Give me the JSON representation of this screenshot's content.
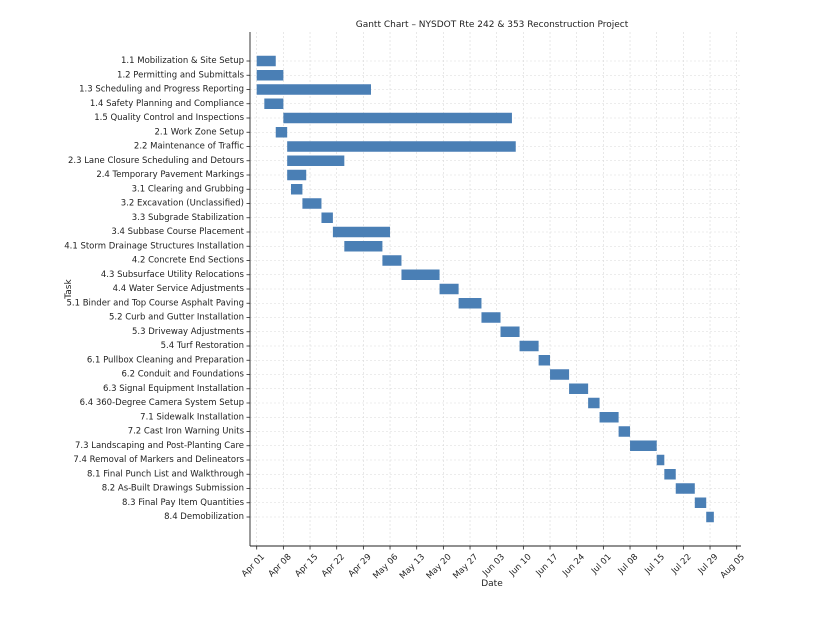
{
  "chart_data": {
    "type": "gantt",
    "title": "Gantt Chart – NYSDOT Rte 242 & 353 Reconstruction Project",
    "xlabel": "Date",
    "ylabel": "Task",
    "grid": true,
    "bar_color": "#4a7fb5",
    "x_ticks": [
      {
        "date": "2024-04-01",
        "label": "Apr 01"
      },
      {
        "date": "2024-04-08",
        "label": "Apr 08"
      },
      {
        "date": "2024-04-15",
        "label": "Apr 15"
      },
      {
        "date": "2024-04-22",
        "label": "Apr 22"
      },
      {
        "date": "2024-04-29",
        "label": "Apr 29"
      },
      {
        "date": "2024-05-06",
        "label": "May 06"
      },
      {
        "date": "2024-05-13",
        "label": "May 13"
      },
      {
        "date": "2024-05-20",
        "label": "May 20"
      },
      {
        "date": "2024-05-27",
        "label": "May 27"
      },
      {
        "date": "2024-06-03",
        "label": "Jun 03"
      },
      {
        "date": "2024-06-10",
        "label": "Jun 10"
      },
      {
        "date": "2024-06-17",
        "label": "Jun 17"
      },
      {
        "date": "2024-06-24",
        "label": "Jun 24"
      },
      {
        "date": "2024-07-01",
        "label": "Jul 01"
      },
      {
        "date": "2024-07-08",
        "label": "Jul 08"
      },
      {
        "date": "2024-07-15",
        "label": "Jul 15"
      },
      {
        "date": "2024-07-22",
        "label": "Jul 22"
      },
      {
        "date": "2024-07-29",
        "label": "Jul 29"
      },
      {
        "date": "2024-08-05",
        "label": "Aug 05"
      }
    ],
    "tasks": [
      {
        "name": "1.1 Mobilization & Site Setup",
        "start": "2024-04-01",
        "end": "2024-04-06"
      },
      {
        "name": "1.2 Permitting and Submittals",
        "start": "2024-04-01",
        "end": "2024-04-08"
      },
      {
        "name": "1.3 Scheduling and Progress Reporting",
        "start": "2024-04-01",
        "end": "2024-05-01"
      },
      {
        "name": "1.4 Safety Planning and Compliance",
        "start": "2024-04-03",
        "end": "2024-04-08"
      },
      {
        "name": "1.5 Quality Control and Inspections",
        "start": "2024-04-08",
        "end": "2024-06-07"
      },
      {
        "name": "2.1 Work Zone Setup",
        "start": "2024-04-06",
        "end": "2024-04-09"
      },
      {
        "name": "2.2 Maintenance of Traffic",
        "start": "2024-04-09",
        "end": "2024-06-08"
      },
      {
        "name": "2.3 Lane Closure Scheduling and Detours",
        "start": "2024-04-09",
        "end": "2024-04-24"
      },
      {
        "name": "2.4 Temporary Pavement Markings",
        "start": "2024-04-09",
        "end": "2024-04-14"
      },
      {
        "name": "3.1 Clearing and Grubbing",
        "start": "2024-04-10",
        "end": "2024-04-13"
      },
      {
        "name": "3.2 Excavation (Unclassified)",
        "start": "2024-04-13",
        "end": "2024-04-18"
      },
      {
        "name": "3.3 Subgrade Stabilization",
        "start": "2024-04-18",
        "end": "2024-04-21"
      },
      {
        "name": "3.4 Subbase Course Placement",
        "start": "2024-04-21",
        "end": "2024-05-06"
      },
      {
        "name": "4.1 Storm Drainage Structures Installation",
        "start": "2024-04-24",
        "end": "2024-05-04"
      },
      {
        "name": "4.2 Concrete End Sections",
        "start": "2024-05-04",
        "end": "2024-05-09"
      },
      {
        "name": "4.3 Subsurface Utility Relocations",
        "start": "2024-05-09",
        "end": "2024-05-19"
      },
      {
        "name": "4.4 Water Service Adjustments",
        "start": "2024-05-19",
        "end": "2024-05-24"
      },
      {
        "name": "5.1 Binder and Top Course Asphalt Paving",
        "start": "2024-05-24",
        "end": "2024-05-30"
      },
      {
        "name": "5.2 Curb and Gutter Installation",
        "start": "2024-05-30",
        "end": "2024-06-04"
      },
      {
        "name": "5.3 Driveway Adjustments",
        "start": "2024-06-04",
        "end": "2024-06-09"
      },
      {
        "name": "5.4 Turf Restoration",
        "start": "2024-06-09",
        "end": "2024-06-14"
      },
      {
        "name": "6.1 Pullbox Cleaning and Preparation",
        "start": "2024-06-14",
        "end": "2024-06-17"
      },
      {
        "name": "6.2 Conduit and Foundations",
        "start": "2024-06-17",
        "end": "2024-06-22"
      },
      {
        "name": "6.3 Signal Equipment Installation",
        "start": "2024-06-22",
        "end": "2024-06-27"
      },
      {
        "name": "6.4 360-Degree Camera System Setup",
        "start": "2024-06-27",
        "end": "2024-06-30"
      },
      {
        "name": "7.1 Sidewalk Installation",
        "start": "2024-06-30",
        "end": "2024-07-05"
      },
      {
        "name": "7.2 Cast Iron Warning Units",
        "start": "2024-07-05",
        "end": "2024-07-08"
      },
      {
        "name": "7.3 Landscaping and Post-Planting Care",
        "start": "2024-07-08",
        "end": "2024-07-15"
      },
      {
        "name": "7.4 Removal of Markers and Delineators",
        "start": "2024-07-15",
        "end": "2024-07-17"
      },
      {
        "name": "8.1 Final Punch List and Walkthrough",
        "start": "2024-07-17",
        "end": "2024-07-20"
      },
      {
        "name": "8.2 As-Built Drawings Submission",
        "start": "2024-07-20",
        "end": "2024-07-25"
      },
      {
        "name": "8.3 Final Pay Item Quantities",
        "start": "2024-07-25",
        "end": "2024-07-28"
      },
      {
        "name": "8.4 Demobilization",
        "start": "2024-07-28",
        "end": "2024-07-30"
      }
    ]
  }
}
